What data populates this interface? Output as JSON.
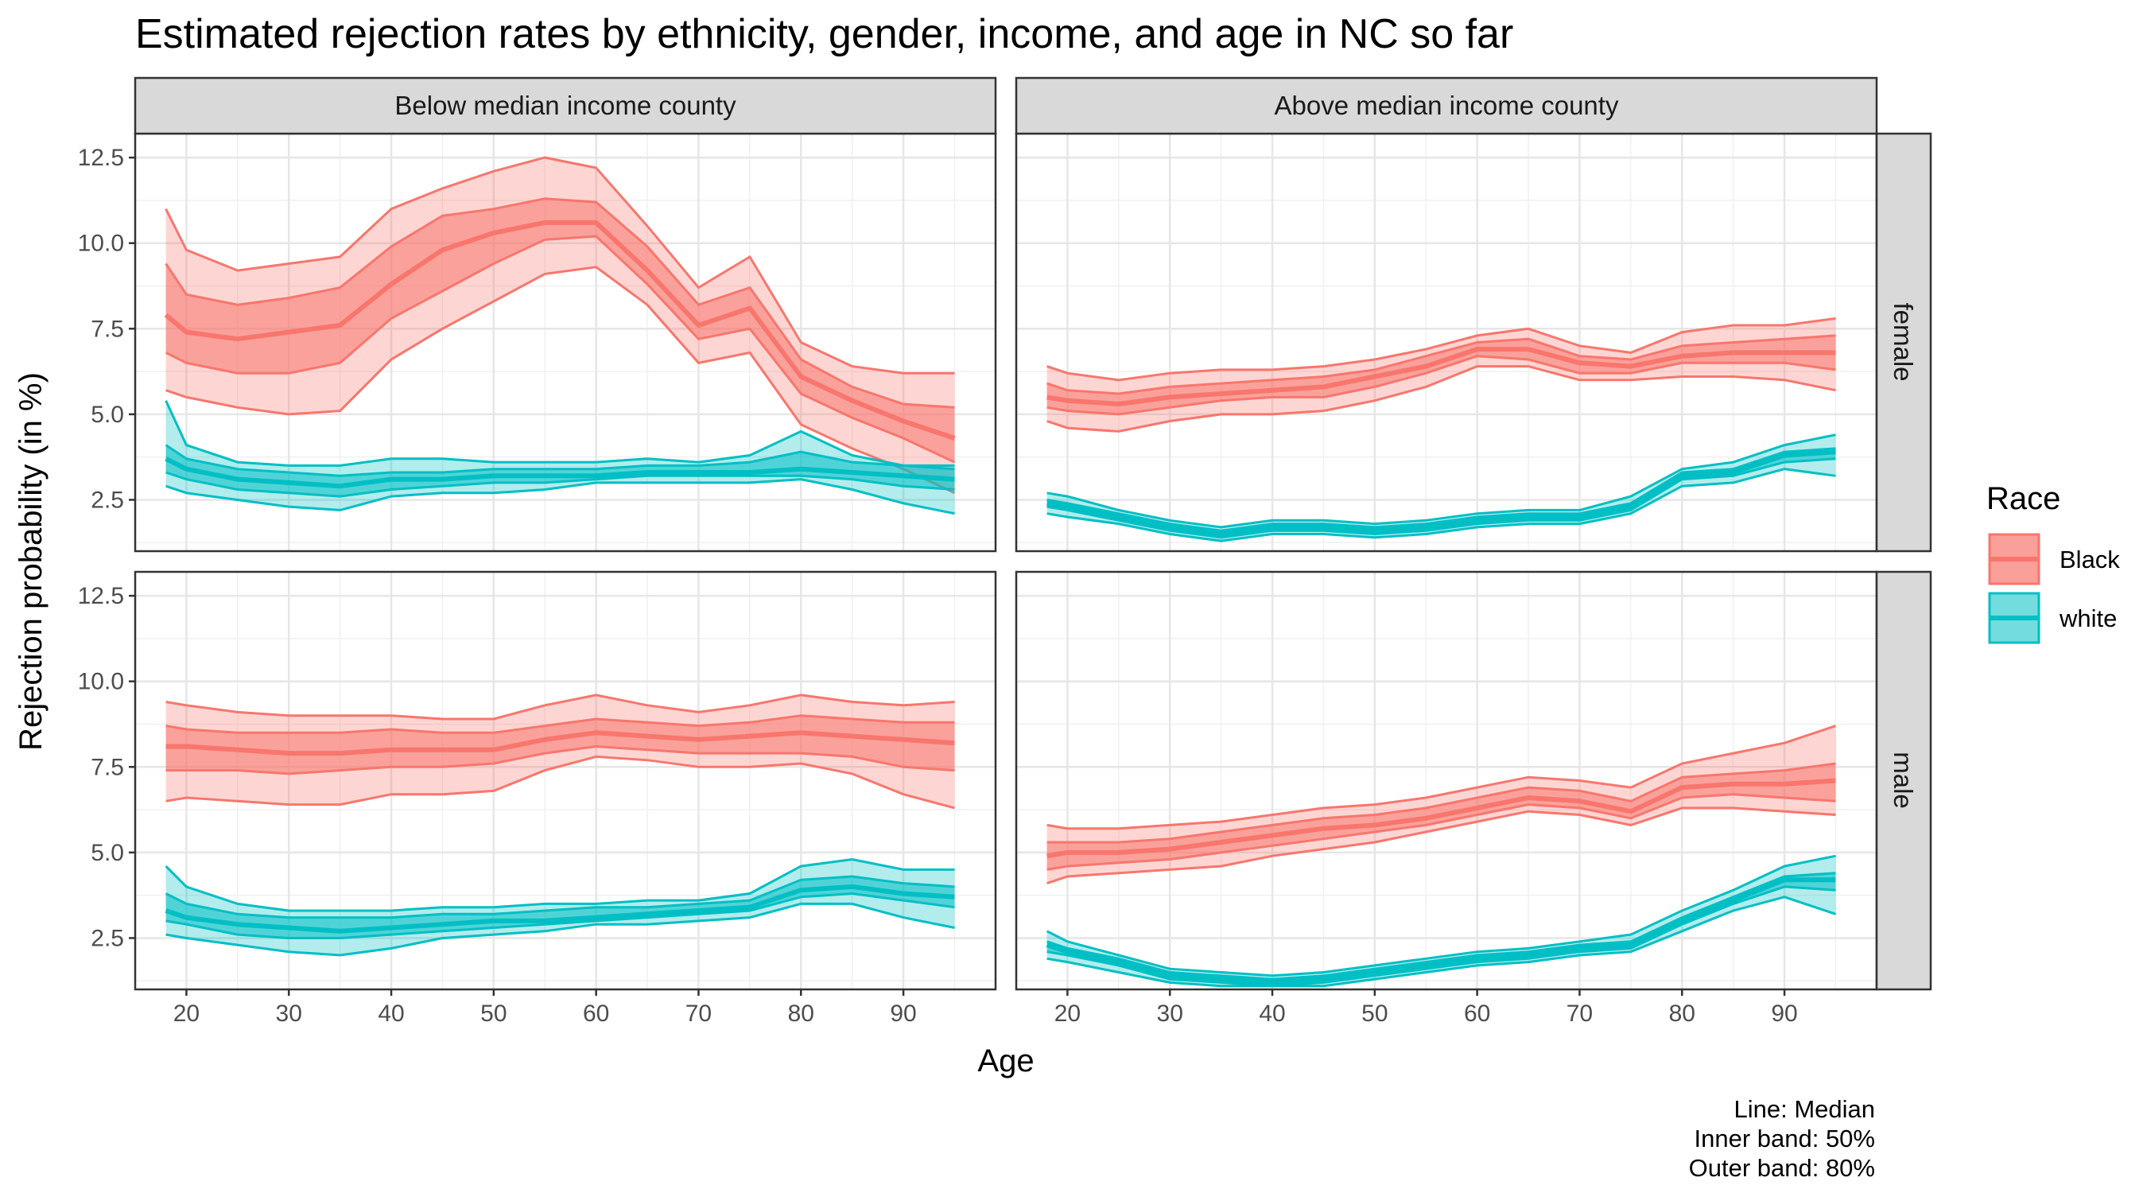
{
  "chart_data": {
    "type": "area",
    "title": "Estimated rejection rates by ethnicity, gender, income, and age in NC so far",
    "xlabel": "Age",
    "ylabel": "Rejection probability (in %)",
    "xlim": [
      15,
      99
    ],
    "ylim": [
      1.0,
      13.2
    ],
    "x_ticks": [
      20,
      30,
      40,
      50,
      60,
      70,
      80,
      90
    ],
    "y_ticks": [
      2.5,
      5.0,
      7.5,
      10.0,
      12.5
    ],
    "y_tick_labels": [
      "2.5",
      "5.0",
      "7.5",
      "10.0",
      "12.5"
    ],
    "grid": true,
    "legend": {
      "title": "Race",
      "position": "right",
      "entries": [
        {
          "name": "Black",
          "color": "#F8766D"
        },
        {
          "name": "white",
          "color": "#00BFC4"
        }
      ]
    },
    "caption": [
      "Line: Median",
      "Inner band: 50%",
      "Outer band: 80%"
    ],
    "facets": {
      "columns": [
        "Below median income county",
        "Above median income county"
      ],
      "rows": [
        "female",
        "male"
      ]
    },
    "x": [
      18,
      20,
      25,
      30,
      35,
      40,
      45,
      50,
      55,
      60,
      65,
      70,
      75,
      80,
      85,
      90,
      95
    ],
    "panels": [
      {
        "column": "Below median income county",
        "row": "female",
        "series": [
          {
            "name": "Black",
            "median": [
              7.9,
              7.4,
              7.2,
              7.4,
              7.6,
              8.8,
              9.8,
              10.3,
              10.6,
              10.6,
              9.2,
              7.6,
              8.1,
              6.1,
              5.4,
              4.8,
              4.3
            ],
            "lower50": [
              6.8,
              6.5,
              6.2,
              6.2,
              6.5,
              7.8,
              8.6,
              9.4,
              10.1,
              10.2,
              8.8,
              7.2,
              7.5,
              5.6,
              4.9,
              4.3,
              3.6
            ],
            "upper50": [
              9.4,
              8.5,
              8.2,
              8.4,
              8.7,
              9.9,
              10.8,
              11.0,
              11.3,
              11.2,
              9.9,
              8.2,
              8.7,
              6.6,
              5.8,
              5.3,
              5.2
            ],
            "lower80": [
              5.7,
              5.5,
              5.2,
              5.0,
              5.1,
              6.6,
              7.5,
              8.3,
              9.1,
              9.3,
              8.2,
              6.5,
              6.8,
              4.7,
              4.0,
              3.4,
              2.7
            ],
            "upper80": [
              11.0,
              9.8,
              9.2,
              9.4,
              9.6,
              11.0,
              11.6,
              12.1,
              12.5,
              12.2,
              10.5,
              8.7,
              9.6,
              7.1,
              6.4,
              6.2,
              6.2
            ]
          },
          {
            "name": "white",
            "median": [
              3.7,
              3.4,
              3.1,
              3.0,
              2.9,
              3.1,
              3.1,
              3.2,
              3.2,
              3.2,
              3.3,
              3.3,
              3.3,
              3.4,
              3.3,
              3.2,
              3.1
            ],
            "lower50": [
              3.3,
              3.1,
              2.8,
              2.7,
              2.6,
              2.8,
              2.9,
              3.0,
              3.0,
              3.1,
              3.2,
              3.2,
              3.2,
              3.2,
              3.1,
              2.9,
              2.8
            ],
            "upper50": [
              4.1,
              3.7,
              3.4,
              3.3,
              3.2,
              3.3,
              3.3,
              3.4,
              3.4,
              3.4,
              3.5,
              3.5,
              3.6,
              3.9,
              3.6,
              3.5,
              3.4
            ],
            "lower80": [
              2.9,
              2.7,
              2.5,
              2.3,
              2.2,
              2.6,
              2.7,
              2.7,
              2.8,
              3.0,
              3.0,
              3.0,
              3.0,
              3.1,
              2.8,
              2.4,
              2.1
            ],
            "upper80": [
              5.4,
              4.1,
              3.6,
              3.5,
              3.5,
              3.7,
              3.7,
              3.6,
              3.6,
              3.6,
              3.7,
              3.6,
              3.8,
              4.5,
              3.8,
              3.5,
              3.5
            ]
          }
        ]
      },
      {
        "column": "Above median income county",
        "row": "female",
        "series": [
          {
            "name": "Black",
            "median": [
              5.5,
              5.4,
              5.3,
              5.5,
              5.6,
              5.7,
              5.8,
              6.1,
              6.4,
              6.9,
              6.9,
              6.5,
              6.4,
              6.7,
              6.8,
              6.8,
              6.8
            ],
            "lower50": [
              5.2,
              5.1,
              5.0,
              5.2,
              5.4,
              5.5,
              5.5,
              5.8,
              6.2,
              6.7,
              6.6,
              6.2,
              6.2,
              6.5,
              6.5,
              6.5,
              6.3
            ],
            "upper50": [
              5.9,
              5.7,
              5.6,
              5.8,
              5.9,
              6.0,
              6.1,
              6.3,
              6.7,
              7.1,
              7.2,
              6.7,
              6.6,
              7.0,
              7.1,
              7.2,
              7.3
            ],
            "lower80": [
              4.8,
              4.6,
              4.5,
              4.8,
              5.0,
              5.0,
              5.1,
              5.4,
              5.8,
              6.4,
              6.4,
              6.0,
              6.0,
              6.1,
              6.1,
              6.0,
              5.7
            ],
            "upper80": [
              6.4,
              6.2,
              6.0,
              6.2,
              6.3,
              6.3,
              6.4,
              6.6,
              6.9,
              7.3,
              7.5,
              7.0,
              6.8,
              7.4,
              7.6,
              7.6,
              7.8
            ]
          },
          {
            "name": "white",
            "median": [
              2.4,
              2.3,
              2.0,
              1.7,
              1.5,
              1.7,
              1.7,
              1.6,
              1.7,
              1.9,
              2.0,
              2.0,
              2.3,
              3.2,
              3.3,
              3.8,
              3.9
            ],
            "lower50": [
              2.3,
              2.2,
              1.9,
              1.6,
              1.4,
              1.6,
              1.6,
              1.5,
              1.6,
              1.8,
              1.9,
              1.9,
              2.2,
              3.1,
              3.2,
              3.6,
              3.7
            ],
            "upper50": [
              2.5,
              2.4,
              2.1,
              1.8,
              1.6,
              1.8,
              1.8,
              1.7,
              1.8,
              2.0,
              2.1,
              2.1,
              2.4,
              3.3,
              3.4,
              3.9,
              4.0
            ],
            "lower80": [
              2.1,
              2.0,
              1.8,
              1.5,
              1.3,
              1.5,
              1.5,
              1.4,
              1.5,
              1.7,
              1.8,
              1.8,
              2.1,
              2.9,
              3.0,
              3.4,
              3.2
            ],
            "upper80": [
              2.7,
              2.6,
              2.2,
              1.9,
              1.7,
              1.9,
              1.9,
              1.8,
              1.9,
              2.1,
              2.2,
              2.2,
              2.6,
              3.4,
              3.6,
              4.1,
              4.4
            ]
          }
        ]
      },
      {
        "column": "Below median income county",
        "row": "male",
        "series": [
          {
            "name": "Black",
            "median": [
              8.1,
              8.1,
              8.0,
              7.9,
              7.9,
              8.0,
              8.0,
              8.0,
              8.3,
              8.5,
              8.4,
              8.3,
              8.4,
              8.5,
              8.4,
              8.3,
              8.2
            ],
            "lower50": [
              7.4,
              7.4,
              7.4,
              7.3,
              7.4,
              7.5,
              7.5,
              7.6,
              7.9,
              8.1,
              8.0,
              7.9,
              7.9,
              7.9,
              7.8,
              7.5,
              7.4
            ],
            "upper50": [
              8.7,
              8.6,
              8.5,
              8.5,
              8.5,
              8.6,
              8.5,
              8.5,
              8.7,
              8.9,
              8.8,
              8.7,
              8.8,
              9.0,
              8.9,
              8.8,
              8.8
            ],
            "lower80": [
              6.5,
              6.6,
              6.5,
              6.4,
              6.4,
              6.7,
              6.7,
              6.8,
              7.4,
              7.8,
              7.7,
              7.5,
              7.5,
              7.6,
              7.3,
              6.7,
              6.3
            ],
            "upper80": [
              9.4,
              9.3,
              9.1,
              9.0,
              9.0,
              9.0,
              8.9,
              8.9,
              9.3,
              9.6,
              9.3,
              9.1,
              9.3,
              9.6,
              9.4,
              9.3,
              9.4
            ]
          },
          {
            "name": "white",
            "median": [
              3.3,
              3.1,
              2.9,
              2.8,
              2.7,
              2.8,
              2.9,
              3.0,
              3.0,
              3.1,
              3.2,
              3.3,
              3.4,
              3.9,
              4.0,
              3.8,
              3.7
            ],
            "lower50": [
              3.0,
              2.9,
              2.6,
              2.5,
              2.5,
              2.6,
              2.7,
              2.8,
              2.9,
              3.0,
              3.1,
              3.2,
              3.3,
              3.7,
              3.8,
              3.6,
              3.4
            ],
            "upper50": [
              3.8,
              3.5,
              3.2,
              3.1,
              3.1,
              3.1,
              3.2,
              3.2,
              3.3,
              3.4,
              3.4,
              3.5,
              3.6,
              4.2,
              4.3,
              4.1,
              4.0
            ],
            "lower80": [
              2.6,
              2.5,
              2.3,
              2.1,
              2.0,
              2.2,
              2.5,
              2.6,
              2.7,
              2.9,
              2.9,
              3.0,
              3.1,
              3.5,
              3.5,
              3.1,
              2.8
            ],
            "upper80": [
              4.6,
              4.0,
              3.5,
              3.3,
              3.3,
              3.3,
              3.4,
              3.4,
              3.5,
              3.5,
              3.6,
              3.6,
              3.8,
              4.6,
              4.8,
              4.5,
              4.5
            ]
          }
        ]
      },
      {
        "column": "Above median income county",
        "row": "male",
        "series": [
          {
            "name": "Black",
            "median": [
              4.9,
              5.0,
              5.0,
              5.1,
              5.3,
              5.5,
              5.7,
              5.8,
              6.0,
              6.3,
              6.6,
              6.5,
              6.2,
              6.9,
              7.0,
              7.0,
              7.1
            ],
            "lower50": [
              4.5,
              4.6,
              4.7,
              4.8,
              5.0,
              5.2,
              5.4,
              5.6,
              5.8,
              6.1,
              6.4,
              6.3,
              6.0,
              6.6,
              6.7,
              6.6,
              6.5
            ],
            "upper50": [
              5.3,
              5.3,
              5.3,
              5.4,
              5.6,
              5.8,
              6.0,
              6.1,
              6.3,
              6.6,
              6.9,
              6.8,
              6.5,
              7.2,
              7.3,
              7.4,
              7.6
            ],
            "lower80": [
              4.1,
              4.3,
              4.4,
              4.5,
              4.6,
              4.9,
              5.1,
              5.3,
              5.6,
              5.9,
              6.2,
              6.1,
              5.8,
              6.3,
              6.3,
              6.2,
              6.1
            ],
            "upper80": [
              5.8,
              5.7,
              5.7,
              5.8,
              5.9,
              6.1,
              6.3,
              6.4,
              6.6,
              6.9,
              7.2,
              7.1,
              6.9,
              7.6,
              7.9,
              8.2,
              8.7
            ]
          },
          {
            "name": "white",
            "median": [
              2.3,
              2.1,
              1.8,
              1.4,
              1.3,
              1.2,
              1.3,
              1.5,
              1.7,
              1.9,
              2.0,
              2.2,
              2.3,
              3.0,
              3.6,
              4.2,
              4.2
            ],
            "lower50": [
              2.1,
              2.0,
              1.7,
              1.3,
              1.2,
              1.1,
              1.2,
              1.4,
              1.6,
              1.8,
              1.9,
              2.1,
              2.2,
              2.9,
              3.5,
              4.0,
              3.9
            ],
            "upper50": [
              2.4,
              2.2,
              1.9,
              1.5,
              1.4,
              1.3,
              1.4,
              1.6,
              1.8,
              2.0,
              2.1,
              2.3,
              2.4,
              3.1,
              3.7,
              4.3,
              4.4
            ],
            "lower80": [
              1.9,
              1.8,
              1.5,
              1.2,
              1.1,
              1.1,
              1.1,
              1.3,
              1.5,
              1.7,
              1.8,
              2.0,
              2.1,
              2.7,
              3.3,
              3.7,
              3.2
            ],
            "upper80": [
              2.7,
              2.4,
              2.0,
              1.6,
              1.5,
              1.4,
              1.5,
              1.7,
              1.9,
              2.1,
              2.2,
              2.4,
              2.6,
              3.3,
              3.9,
              4.6,
              4.9
            ]
          }
        ]
      }
    ]
  }
}
